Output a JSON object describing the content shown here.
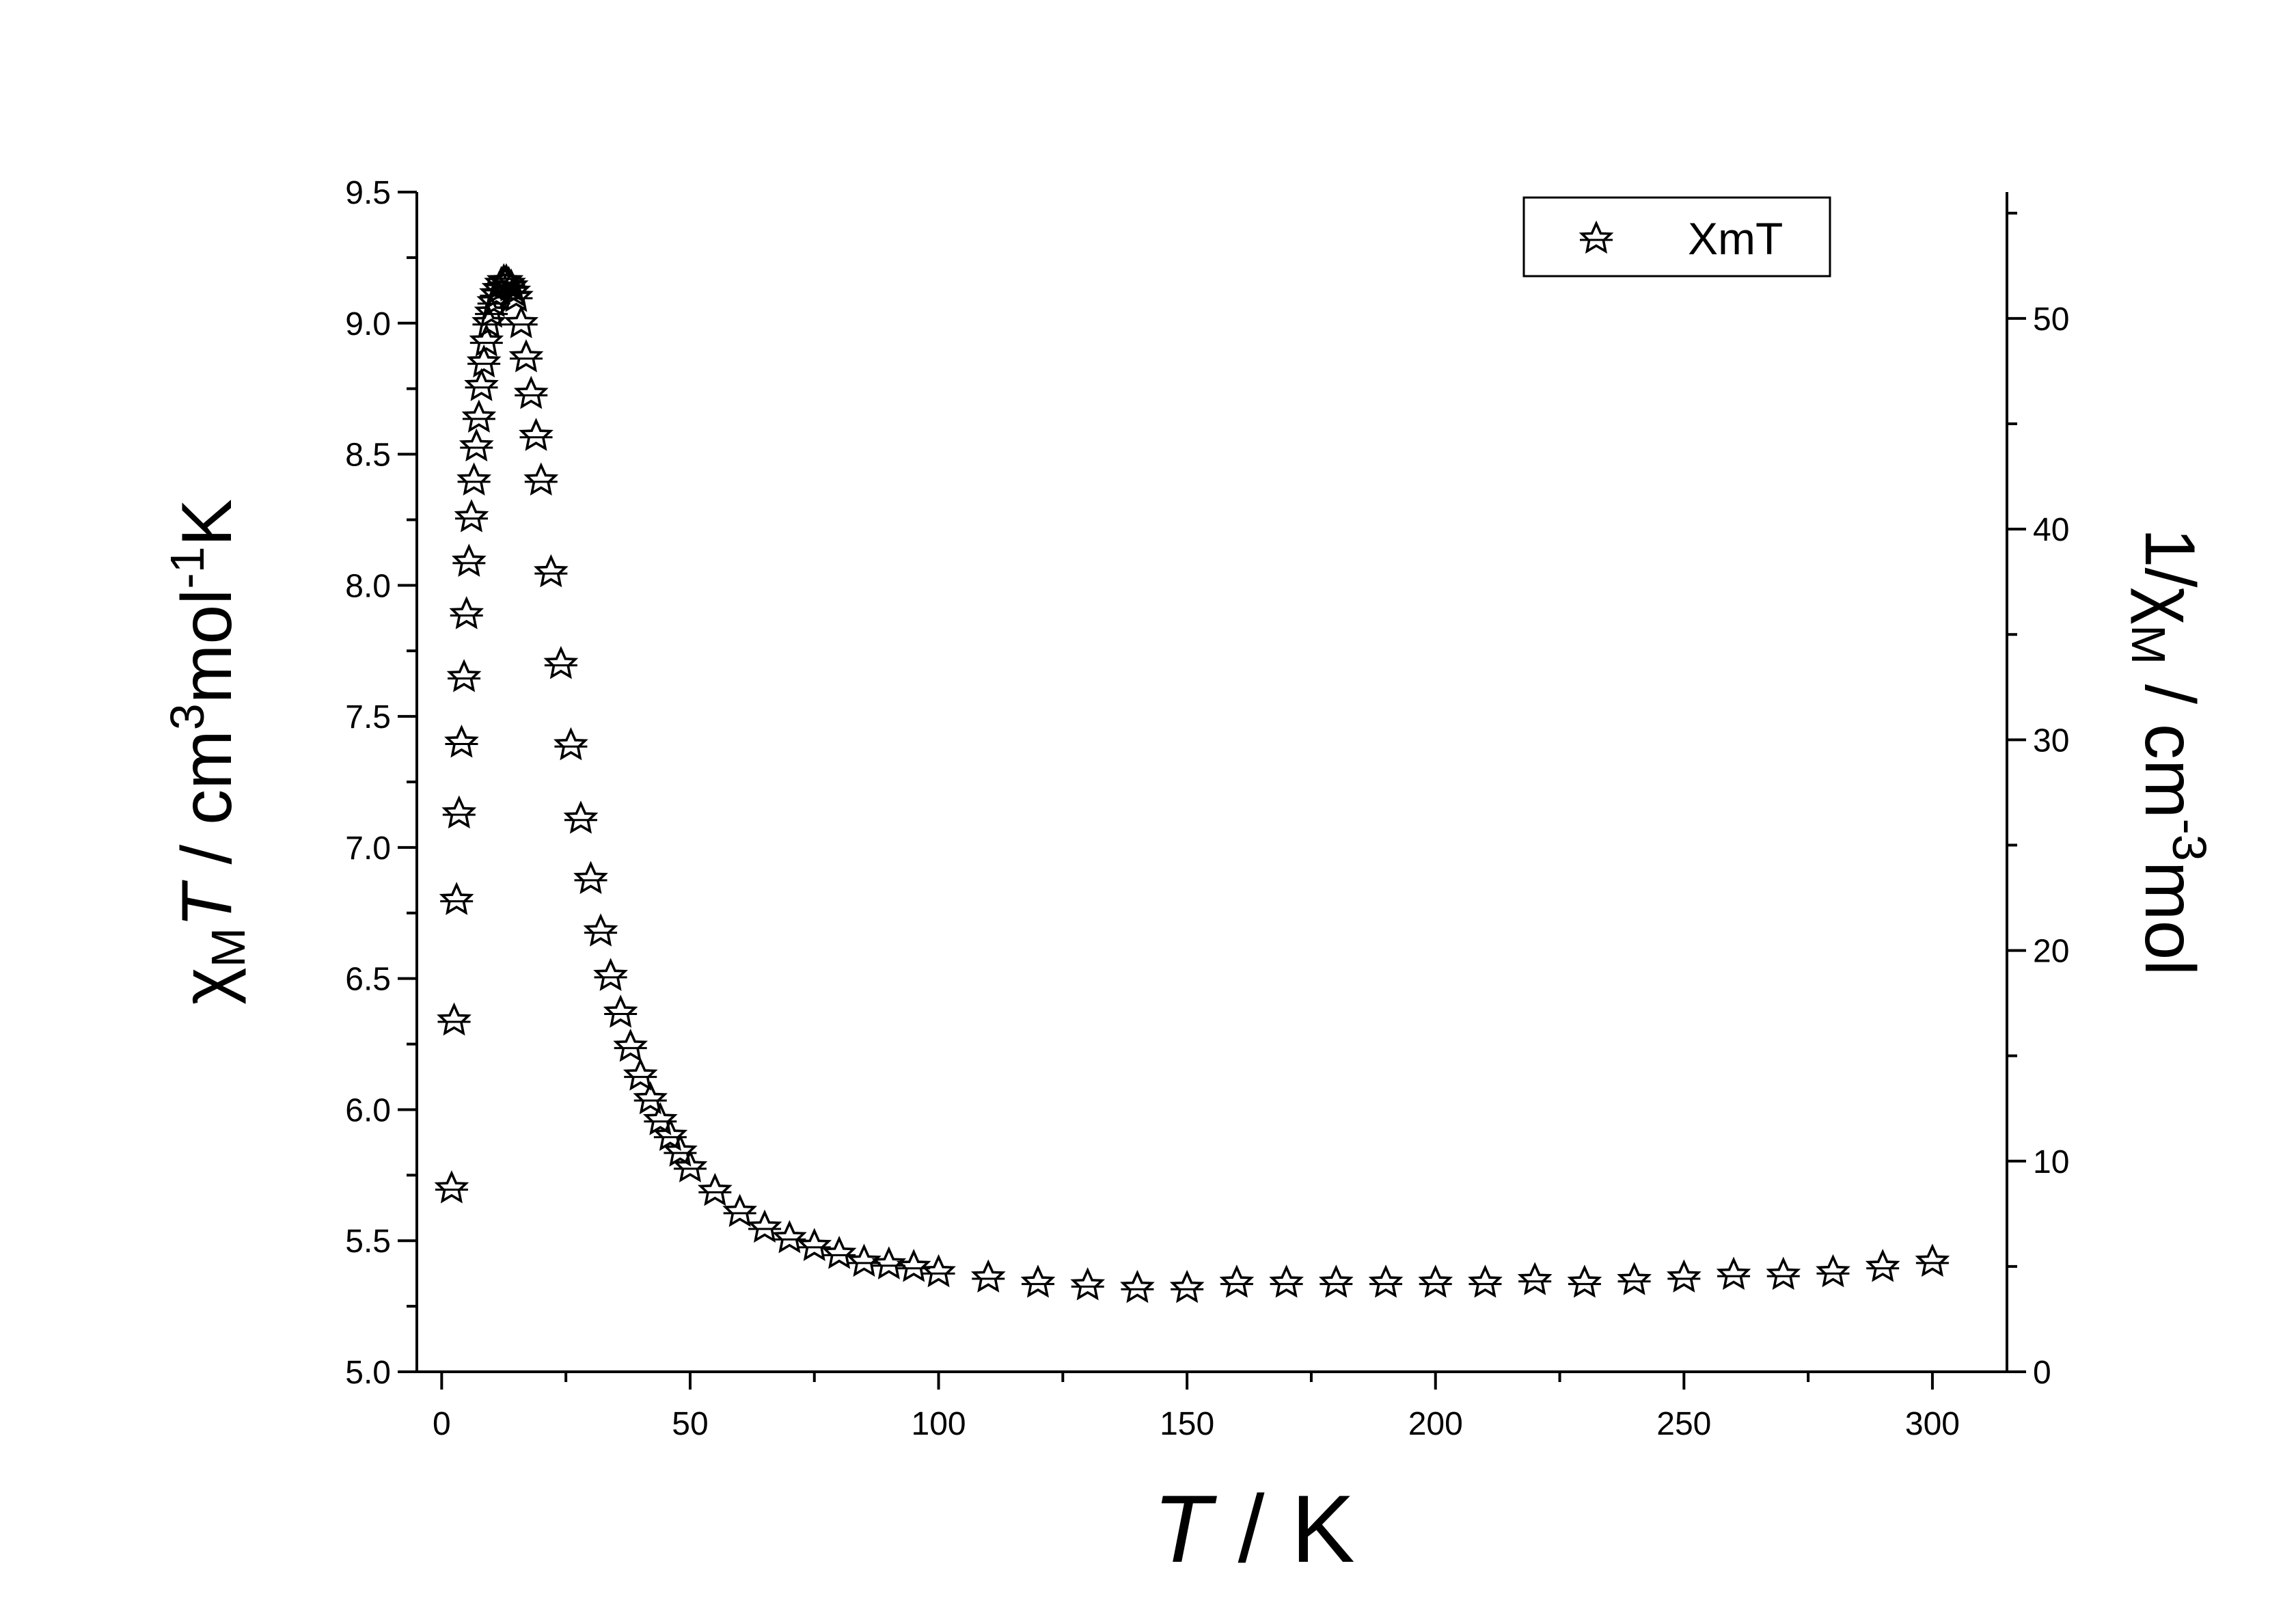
{
  "chart_data": {
    "type": "scatter",
    "x_axis": {
      "range": [
        -5,
        315
      ],
      "ticks": [
        0,
        50,
        100,
        150,
        200,
        250,
        300
      ],
      "label": {
        "italic": "T",
        "rest": " / K"
      }
    },
    "y_axis_left": {
      "range": [
        5.0,
        9.5
      ],
      "ticks": [
        "5.0",
        "5.5",
        "6.0",
        "6.5",
        "7.0",
        "7.5",
        "8.0",
        "8.5",
        "9.0",
        "9.5"
      ],
      "label": {
        "chi": "χ",
        "sub_M": "M",
        "italic_T": "T",
        "rest1": " / cm",
        "sup3": "3",
        "mol": "mol",
        "sup_m1": "-1",
        "K": "K"
      }
    },
    "y_axis_right": {
      "range": [
        0,
        56
      ],
      "ticks": [
        0,
        10,
        20,
        30,
        40,
        50
      ],
      "label": {
        "one": "1/",
        "chi": "χ",
        "sub_M": "M",
        "rest1": " / cm",
        "sup_m3": "-3",
        "mol": "mol"
      }
    },
    "legend": {
      "position": "top-right",
      "entries": [
        "XmT"
      ]
    },
    "grid": false,
    "marker": "star-icon",
    "series": [
      {
        "name": "XmT",
        "x": [
          2,
          2.5,
          3,
          3.5,
          4,
          4.5,
          5,
          5.5,
          6,
          6.5,
          7,
          7.5,
          8,
          8.5,
          9,
          9.5,
          10,
          10.5,
          11,
          11.5,
          12,
          12.5,
          13,
          13.5,
          14,
          14.5,
          15,
          16,
          17,
          18,
          19,
          20,
          22,
          24,
          26,
          28,
          30,
          32,
          34,
          36,
          38,
          40,
          42,
          44,
          46,
          48,
          50,
          55,
          60,
          65,
          70,
          75,
          80,
          85,
          90,
          95,
          100,
          110,
          120,
          130,
          140,
          150,
          160,
          170,
          180,
          190,
          200,
          210,
          220,
          230,
          240,
          250,
          260,
          270,
          280,
          290,
          300
        ],
        "y": [
          5.7,
          6.34,
          6.8,
          7.13,
          7.4,
          7.65,
          7.89,
          8.09,
          8.26,
          8.4,
          8.53,
          8.64,
          8.76,
          8.85,
          8.93,
          9.0,
          9.04,
          9.08,
          9.11,
          9.13,
          9.15,
          9.16,
          9.16,
          9.15,
          9.14,
          9.12,
          9.1,
          9.0,
          8.87,
          8.73,
          8.57,
          8.4,
          8.05,
          7.7,
          7.39,
          7.11,
          6.88,
          6.68,
          6.51,
          6.37,
          6.24,
          6.13,
          6.04,
          5.96,
          5.9,
          5.84,
          5.78,
          5.69,
          5.61,
          5.55,
          5.51,
          5.48,
          5.45,
          5.42,
          5.41,
          5.4,
          5.38,
          5.36,
          5.34,
          5.33,
          5.32,
          5.32,
          5.34,
          5.34,
          5.34,
          5.34,
          5.34,
          5.34,
          5.35,
          5.34,
          5.35,
          5.36,
          5.37,
          5.37,
          5.38,
          5.4,
          5.42
        ]
      }
    ]
  }
}
